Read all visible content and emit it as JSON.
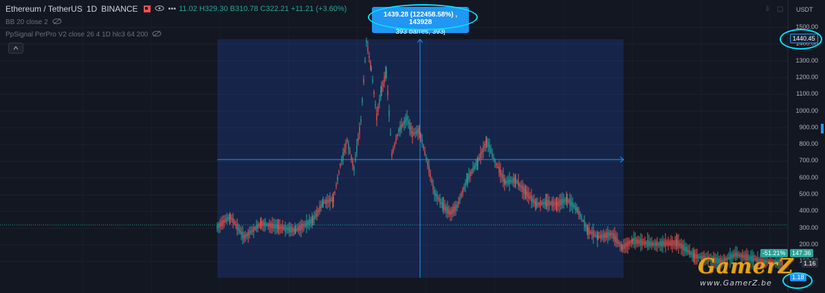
{
  "legend": {
    "symbol": "Ethereum / TetherUS",
    "interval": "1D",
    "exchange": "BINANCE",
    "ohlc_text": "11.02  H329.30  B310.78  C322.21  +11.21 (+3.60%)",
    "indicators": [
      "BB 20 close 2",
      "PpSignal PerPro V2 close 26 4 1D hlc3 64 200"
    ]
  },
  "measure_tooltip": {
    "line1": "1439.28 (122458.58%) , 143928",
    "line2": "393 barres, 393j"
  },
  "price_axis": {
    "currency": "USDT",
    "ticks": [
      "1500.00",
      "1400.00",
      "1300.00",
      "1200.00",
      "1100.00",
      "1000.00",
      "900.00",
      "800.00",
      "700.00",
      "600.00",
      "500.00",
      "400.00",
      "300.00",
      "200.00",
      "100.00"
    ],
    "measure_top_label": "1440.45",
    "percent_tag": "-51.21%",
    "price_tag": "147.36",
    "price_tag_2": "1.18",
    "price_tag_3": "1.16"
  },
  "toolbar": {
    "collapse_icon": "chevron-up-icon"
  },
  "watermark": {
    "title": "GamerZ",
    "subtitle": "www.GamerZ.be"
  },
  "colors": {
    "background": "#131722",
    "up": "#26a69a",
    "down": "#ef5350",
    "accent": "#2196f3",
    "annotation": "#00e5ff",
    "watermark": "#e8a317"
  }
}
